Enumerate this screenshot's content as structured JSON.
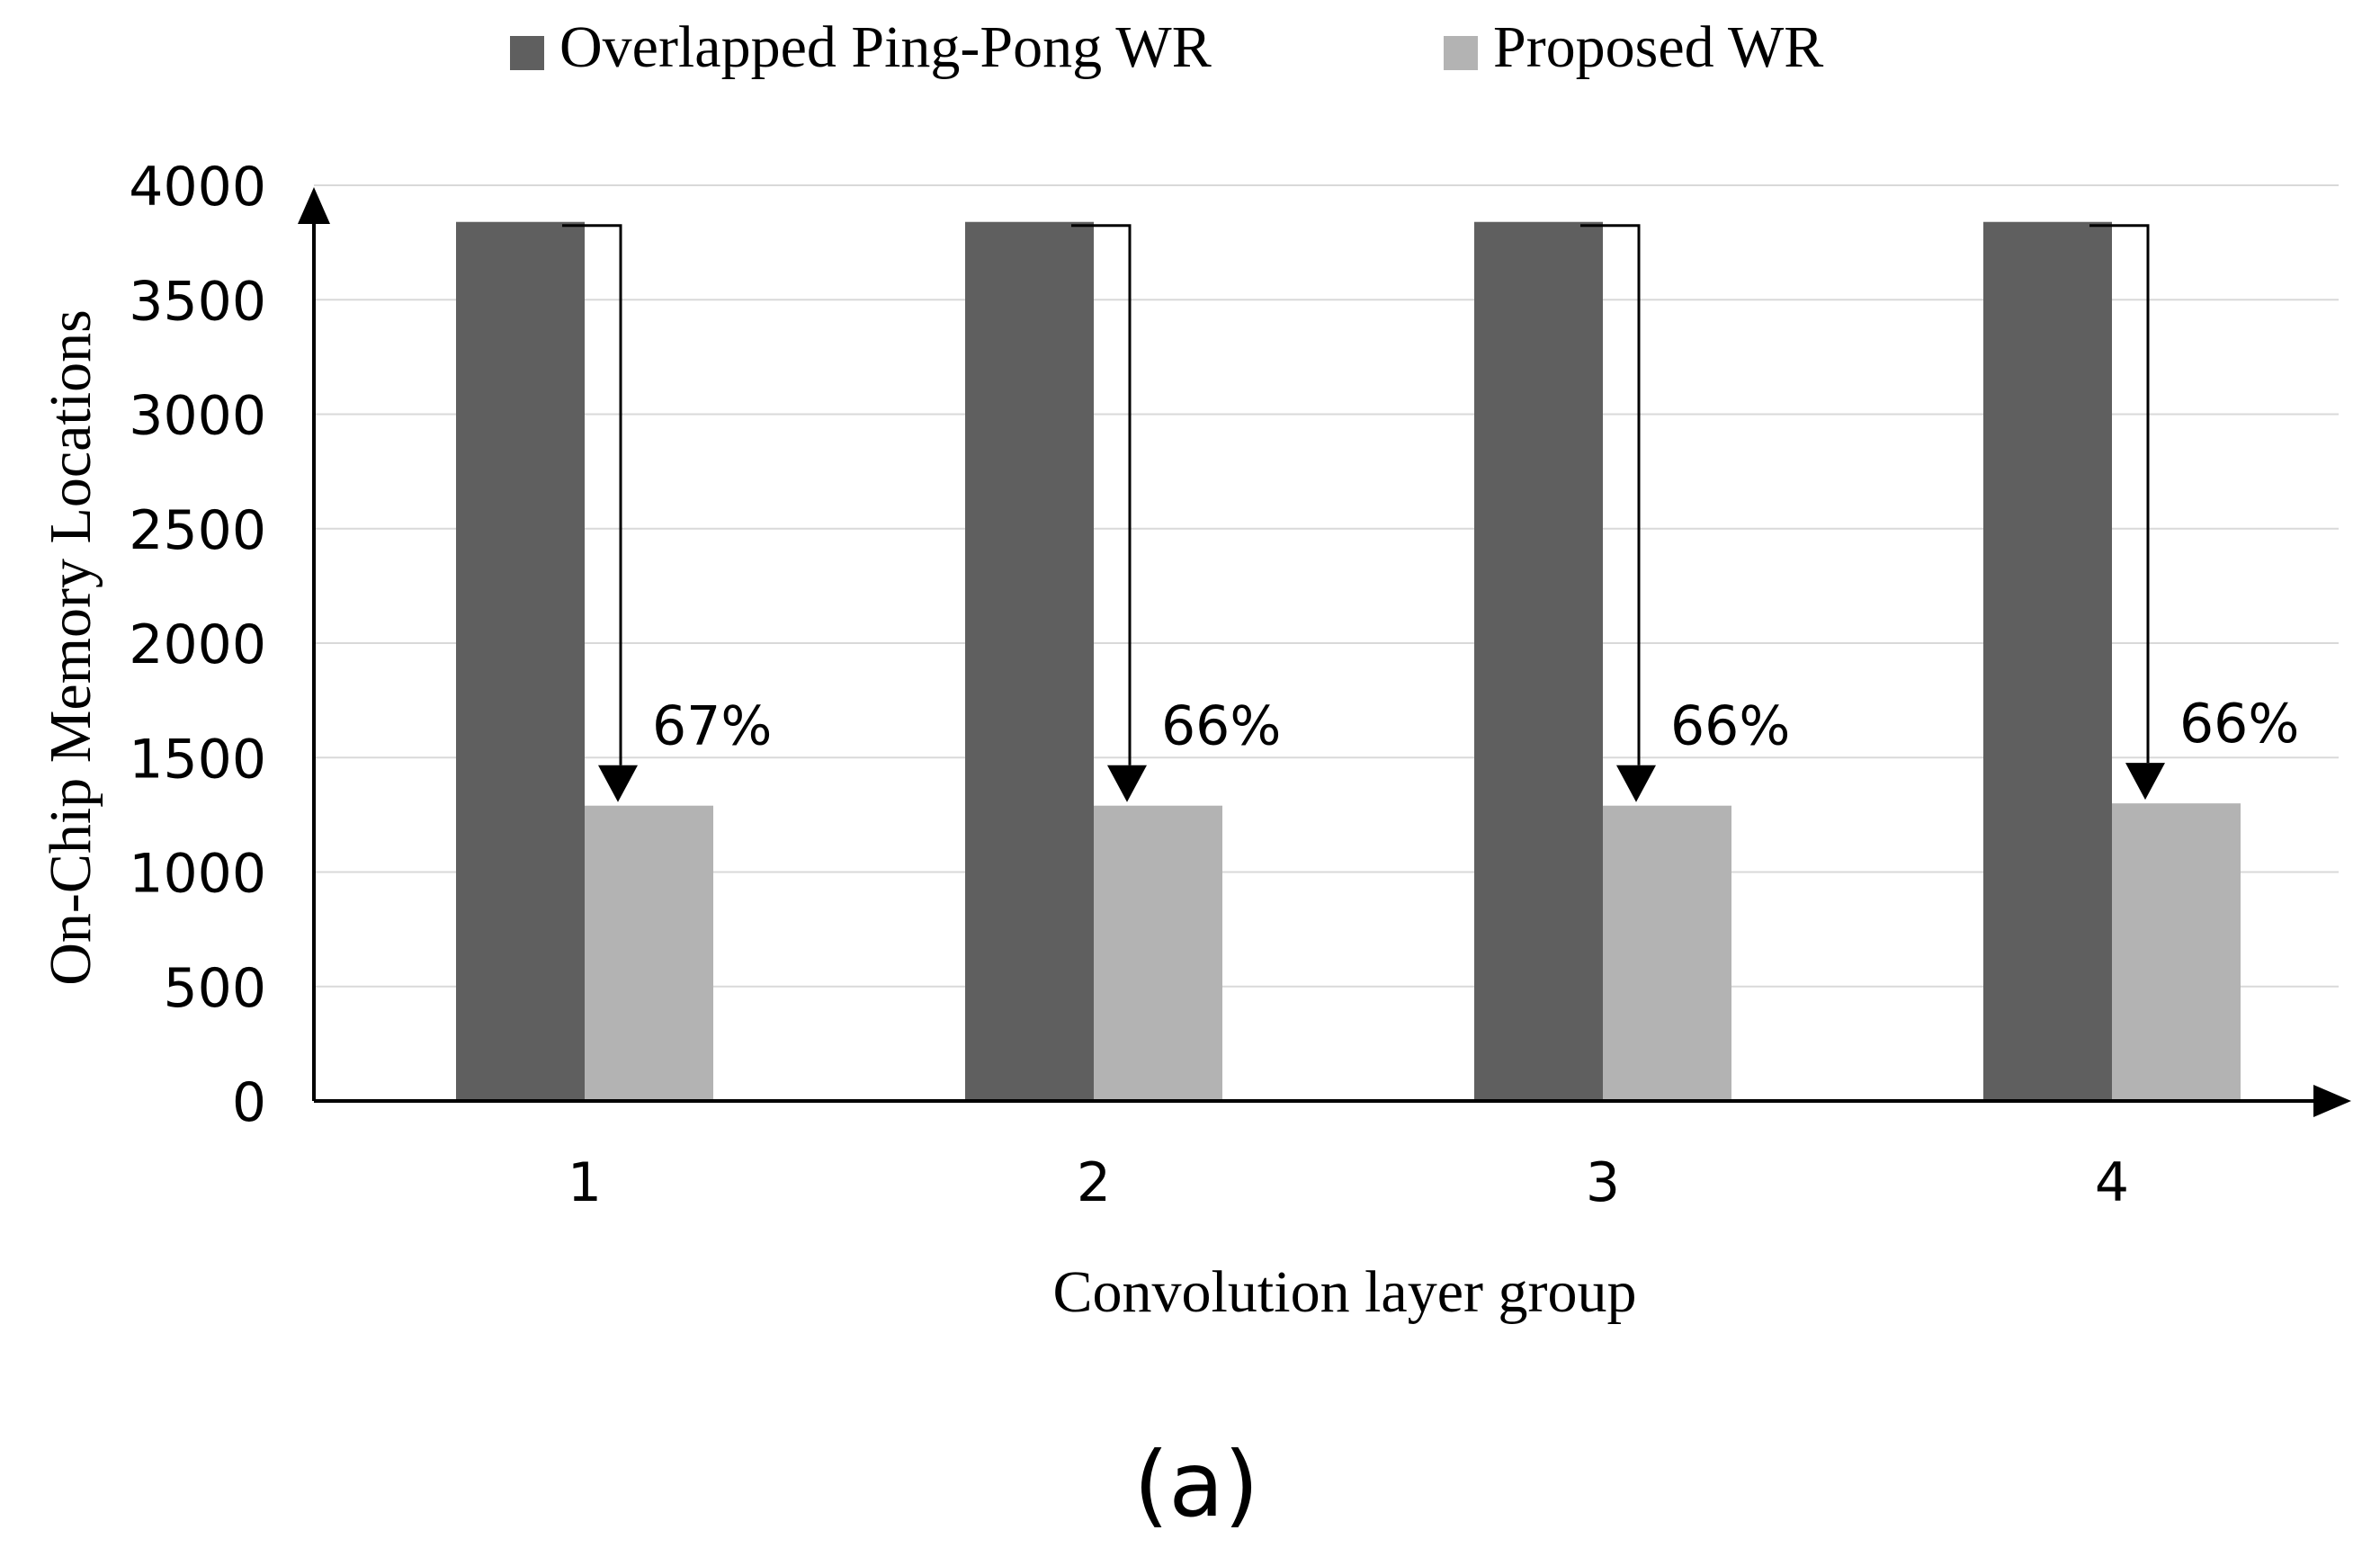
{
  "chart_data": {
    "type": "bar",
    "title": "",
    "xlabel": "Convolution layer group",
    "ylabel": "On-Chip Memory Locations",
    "categories": [
      "1",
      "2",
      "3",
      "4"
    ],
    "ylim": [
      0,
      4000
    ],
    "yticks": [
      0,
      500,
      1000,
      1500,
      2000,
      2500,
      3000,
      3500,
      4000
    ],
    "ytick_labels": [
      "0",
      "500",
      "1000",
      "1500",
      "2000",
      "2500",
      "3000",
      "3500",
      "4000"
    ],
    "grid": true,
    "legend_position": "top-center",
    "series": [
      {
        "name": "Overlapped Ping-Pong WR",
        "color": "#5f5f5f",
        "values": [
          3840,
          3840,
          3840,
          3840
        ]
      },
      {
        "name": "Proposed WR",
        "color": "#b3b3b3",
        "values": [
          1290,
          1290,
          1290,
          1300
        ]
      }
    ],
    "annotations": [
      "67%",
      "66%",
      "66%",
      "66%"
    ],
    "caption": "(a)"
  }
}
